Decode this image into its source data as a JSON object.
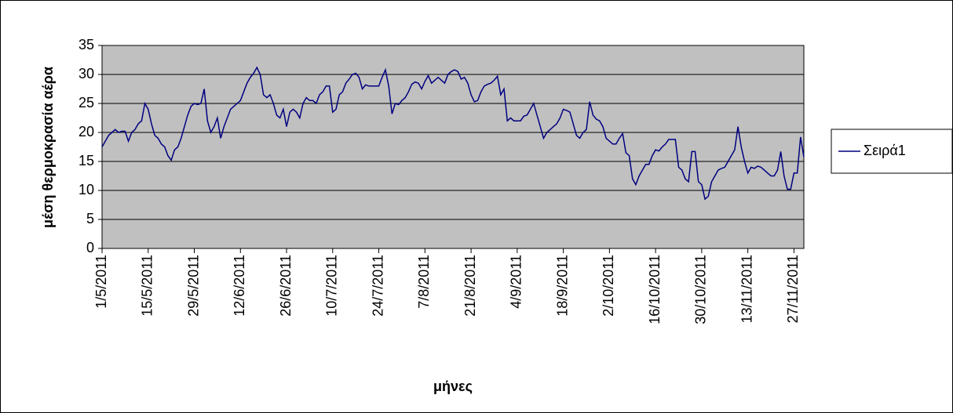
{
  "chart_data": {
    "type": "line",
    "y_label": "μέση θερμοκρασία αέρα",
    "x_label": "μήνες",
    "categories": [
      "1/5/2011",
      null,
      null,
      null,
      null,
      null,
      null,
      null,
      null,
      null,
      null,
      null,
      null,
      null,
      "15/5/2011",
      null,
      null,
      null,
      null,
      null,
      null,
      null,
      null,
      null,
      null,
      null,
      null,
      null,
      "29/5/2011",
      null,
      null,
      null,
      null,
      null,
      null,
      null,
      null,
      null,
      null,
      null,
      null,
      null,
      "12/6/2011",
      null,
      null,
      null,
      null,
      null,
      null,
      null,
      null,
      null,
      null,
      null,
      null,
      null,
      "26/6/2011",
      null,
      null,
      null,
      null,
      null,
      null,
      null,
      null,
      null,
      null,
      null,
      null,
      null,
      "10/7/2011",
      null,
      null,
      null,
      null,
      null,
      null,
      null,
      null,
      null,
      null,
      null,
      null,
      null,
      "24/7/2011",
      null,
      null,
      null,
      null,
      null,
      null,
      null,
      null,
      null,
      null,
      null,
      null,
      null,
      "7/8/2011",
      null,
      null,
      null,
      null,
      null,
      null,
      null,
      null,
      null,
      null,
      null,
      null,
      null,
      "21/8/2011",
      null,
      null,
      null,
      null,
      null,
      null,
      null,
      null,
      null,
      null,
      null,
      null,
      null,
      "4/9/2011",
      null,
      null,
      null,
      null,
      null,
      null,
      null,
      null,
      null,
      null,
      null,
      null,
      null,
      "18/9/2011",
      null,
      null,
      null,
      null,
      null,
      null,
      null,
      null,
      null,
      null,
      null,
      null,
      null,
      "2/10/2011",
      null,
      null,
      null,
      null,
      null,
      null,
      null,
      null,
      null,
      null,
      null,
      null,
      null,
      "16/10/2011",
      null,
      null,
      null,
      null,
      null,
      null,
      null,
      null,
      null,
      null,
      null,
      null,
      null,
      "30/10/2011",
      null,
      null,
      null,
      null,
      null,
      null,
      null,
      null,
      null,
      null,
      null,
      null,
      null,
      "13/11/2011",
      null,
      null,
      null,
      null,
      null,
      null,
      null,
      null,
      null,
      null,
      null,
      null,
      null,
      "27/11/2011",
      null,
      null,
      null
    ],
    "series": [
      {
        "name": "Σειρά1",
        "color": "#000080",
        "values": [
          17.5,
          18.5,
          19.5,
          20,
          20.5,
          20,
          20.2,
          20.2,
          18.5,
          20,
          20.5,
          21.5,
          22,
          25,
          24,
          21.5,
          19.5,
          19,
          18,
          17.5,
          16,
          15.2,
          17,
          17.5,
          19,
          21,
          23,
          24.5,
          25,
          24.8,
          25,
          27.5,
          22,
          20,
          21,
          22.5,
          19,
          21,
          22.5,
          24,
          24.5,
          25,
          25.5,
          27,
          28.5,
          29.5,
          30.2,
          31.2,
          30,
          26.5,
          26,
          26.5,
          25,
          23,
          22.5,
          24,
          21,
          23.5,
          24,
          23.5,
          22.5,
          25,
          26,
          25.5,
          25.5,
          25,
          26.5,
          27,
          28,
          28,
          23.5,
          24,
          26.5,
          27,
          28.5,
          29.2,
          30,
          30.2,
          29.5,
          27.5,
          28.2,
          28,
          28,
          28,
          28,
          29.5,
          30.8,
          28,
          23.2,
          25,
          24.8,
          25.5,
          26,
          27,
          28.3,
          28.7,
          28.5,
          27.5,
          28.8,
          29.8,
          28.5,
          29,
          29.5,
          29,
          28.5,
          30,
          30.5,
          30.8,
          30.5,
          29.2,
          29.5,
          28.5,
          26.5,
          25.3,
          25.5,
          27,
          28,
          28.3,
          28.5,
          29,
          29.7,
          26.5,
          27.5,
          22,
          22.5,
          22,
          22,
          22,
          22.8,
          23,
          24,
          25,
          23,
          21,
          19,
          20,
          20.5,
          21,
          21.5,
          22.5,
          24,
          23.8,
          23.5,
          21.5,
          19.5,
          19,
          20,
          20.5,
          25.3,
          23,
          22.3,
          22,
          21,
          19,
          18.5,
          18,
          18,
          19,
          19.8,
          16.5,
          16,
          12,
          11,
          12.5,
          13.5,
          14.5,
          14.5,
          16,
          17,
          16.8,
          17.5,
          18,
          18.8,
          18.8,
          18.8,
          14,
          13.5,
          12,
          11.5,
          16.7,
          16.7,
          11.5,
          11,
          8.5,
          9,
          11.5,
          12.5,
          13.5,
          13.8,
          14,
          15,
          16,
          17,
          21,
          17.5,
          15,
          13,
          14,
          13.8,
          14.2,
          14,
          13.5,
          13,
          12.5,
          12.5,
          13.5,
          16.7,
          12.5,
          10.2,
          10.2,
          13,
          13,
          19.2,
          15.8
        ]
      }
    ],
    "ylim": [
      0,
      35
    ],
    "yticks": [
      0,
      5,
      10,
      15,
      20,
      25,
      30,
      35
    ],
    "grid": true,
    "plot_background": "#c0c0c0",
    "legend": "right"
  }
}
